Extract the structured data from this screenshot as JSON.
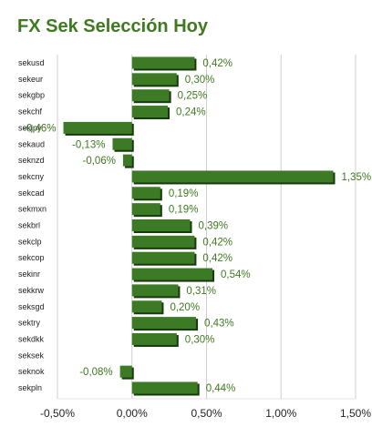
{
  "title": "FX Sek Selección Hoy",
  "colors": {
    "title": "#3e7a1f",
    "bar": "#3d7a26",
    "bar_shadow": "#173a0c",
    "value_label": "#3e7a1f",
    "grid": "#cfcfcf",
    "frame": "#e4e4e4"
  },
  "chart_data": {
    "type": "bar",
    "orientation": "horizontal",
    "title": "FX Sek Selección Hoy",
    "xlabel": "",
    "ylabel": "",
    "xlim": [
      -0.5,
      1.5
    ],
    "grid": true,
    "legend": "none",
    "x_ticks": [
      -0.5,
      0.0,
      0.5,
      1.0,
      1.5
    ],
    "x_tick_labels": [
      "-0,50%",
      "0,00%",
      "0,50%",
      "1,00%",
      "1,50%"
    ],
    "categories": [
      "sekusd",
      "sekeur",
      "sekgbp",
      "sekchf",
      "sekjpy",
      "sekaud",
      "seknzd",
      "sekcny",
      "sekcad",
      "sekmxn",
      "sekbrl",
      "sekclp",
      "sekcop",
      "sekinr",
      "sekkrw",
      "seksgd",
      "sektry",
      "sekdkk",
      "seksek",
      "seknok",
      "sekpln"
    ],
    "values": [
      0.42,
      0.3,
      0.25,
      0.24,
      -0.46,
      -0.13,
      -0.06,
      1.35,
      0.19,
      0.19,
      0.39,
      0.42,
      0.42,
      0.54,
      0.31,
      0.2,
      0.43,
      0.3,
      0.0,
      -0.08,
      0.44
    ],
    "value_labels": [
      "0,42%",
      "0,30%",
      "0,25%",
      "0,24%",
      "-0,46%",
      "-0,13%",
      "-0,06%",
      "1,35%",
      "0,19%",
      "0,19%",
      "0,39%",
      "0,42%",
      "0,42%",
      "0,54%",
      "0,31%",
      "0,20%",
      "0,43%",
      "0,30%",
      "",
      "-0,08%",
      "0,44%"
    ]
  }
}
